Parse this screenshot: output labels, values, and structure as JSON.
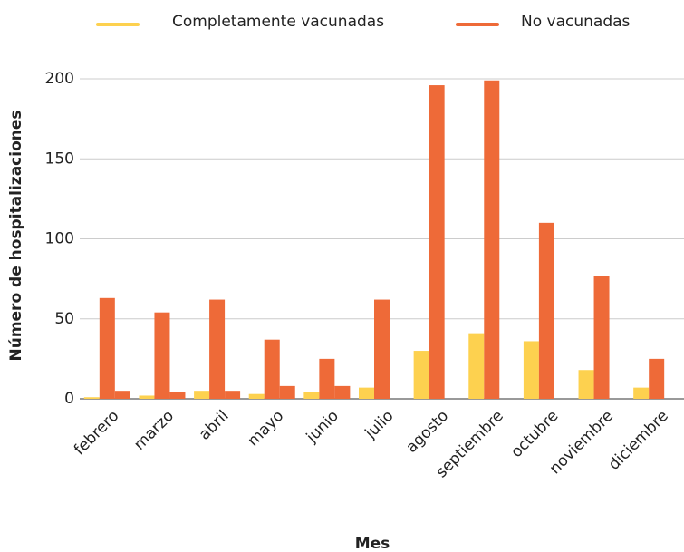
{
  "chart_data": {
    "type": "bar",
    "x_label": "Mes",
    "y_label": "Número de hospitalizaciones",
    "categories": [
      "febrero",
      "marzo",
      "abril",
      "mayo",
      "junio",
      "julio",
      "agosto",
      "septiembre",
      "octubre",
      "noviembre",
      "diciembre"
    ],
    "series": [
      {
        "name": "Completamente vacunadas",
        "color": "#fdd14f",
        "values": [
          1,
          2,
          5,
          3,
          4,
          7,
          30,
          41,
          36,
          18,
          7
        ]
      },
      {
        "name": "No vacunadas",
        "color": "#ee6a38",
        "values": [
          63,
          54,
          62,
          37,
          25,
          62,
          196,
          199,
          110,
          77,
          25
        ]
      },
      {
        "color": "#ee6a38",
        "values": [
          5,
          4,
          5,
          8,
          8,
          null,
          null,
          null,
          null,
          null,
          null
        ]
      }
    ],
    "ylim": [
      0,
      200
    ],
    "yticks": [
      0,
      50,
      100,
      150,
      200
    ],
    "grid": true,
    "legend": "top"
  }
}
